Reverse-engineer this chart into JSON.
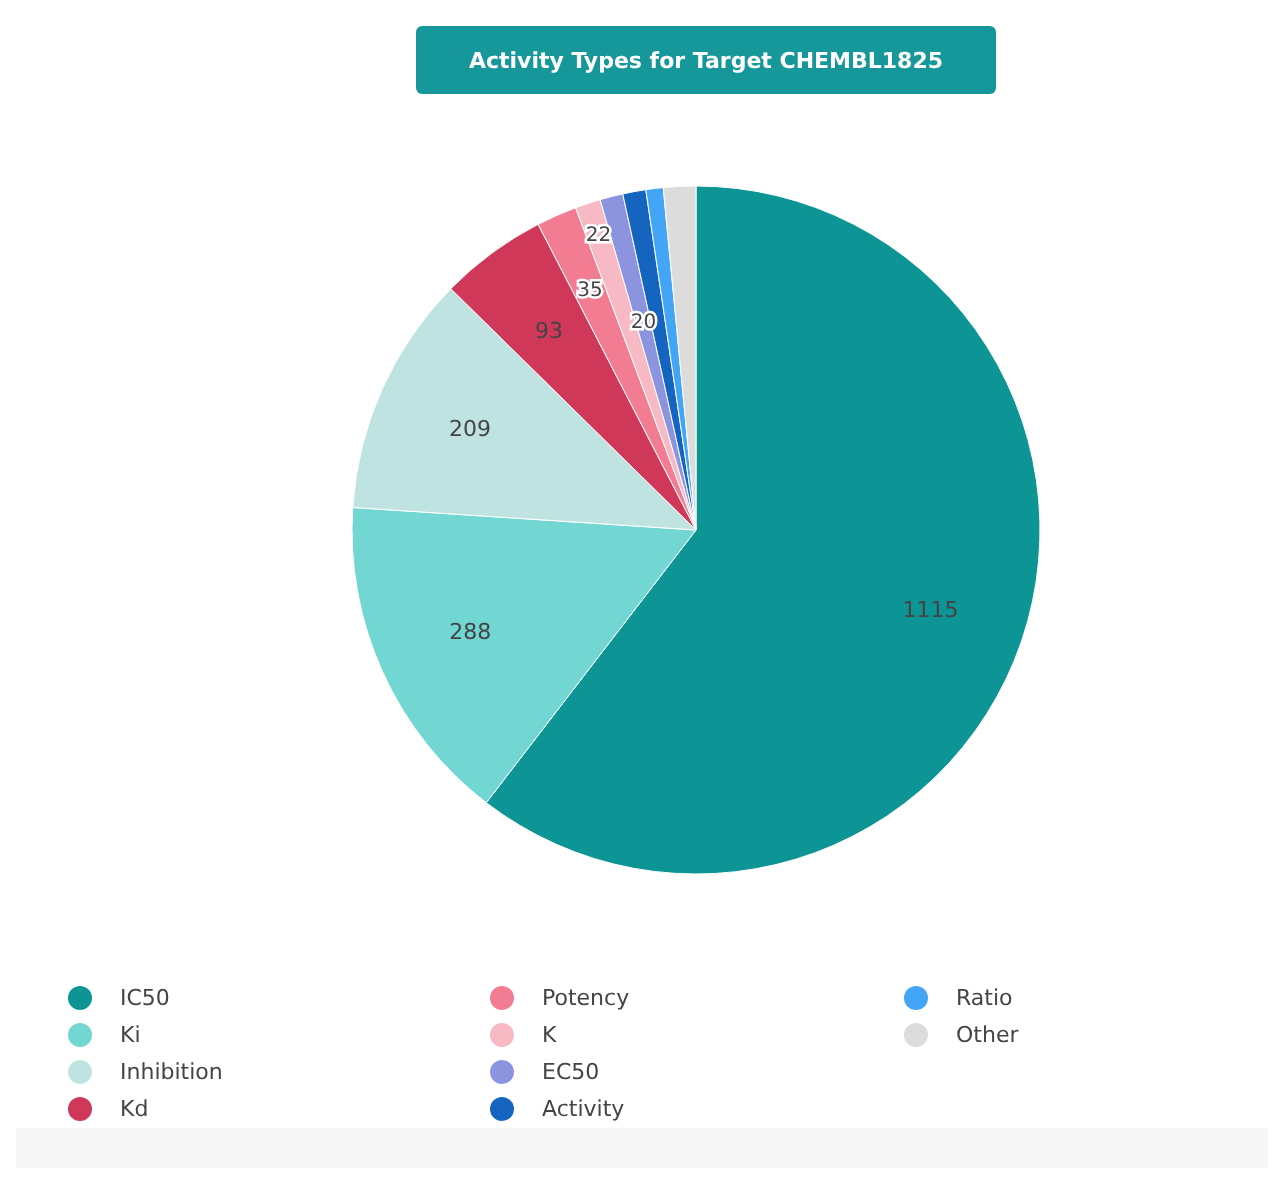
{
  "chart_data": {
    "type": "pie",
    "title": "Activity Types for Target CHEMBL1825",
    "categories": [
      "IC50",
      "Ki",
      "Inhibition",
      "Kd",
      "Potency",
      "K",
      "EC50",
      "Activity",
      "Ratio",
      "Other"
    ],
    "values": [
      1115,
      288,
      209,
      93,
      35,
      22,
      20,
      20,
      15,
      28
    ],
    "value_labels": [
      "1115",
      "288",
      "209",
      "93",
      "35",
      "22",
      "20",
      null,
      null,
      null
    ],
    "colors": [
      "#0d9494",
      "#72d7d3",
      "#bfe3e0",
      "#d0385a",
      "#f27d92",
      "#f7b9c4",
      "#8c94e0",
      "#1565c0",
      "#42a5f5",
      "#dcdcdc"
    ],
    "legend": "bottom"
  }
}
